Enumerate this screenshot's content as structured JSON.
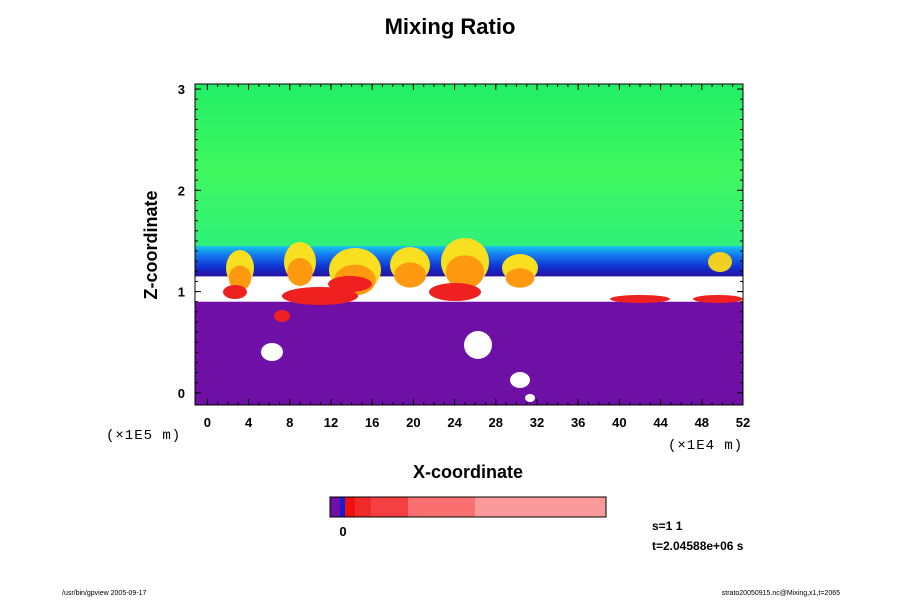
{
  "chart_data": {
    "type": "heatmap",
    "title": "Mixing Ratio",
    "xlabel": "X-coordinate",
    "ylabel": "Z-coordinate",
    "x_scale_label": "(×1E4 m)",
    "y_scale_label": "(×1E5 m)",
    "xlim": [
      -1.2,
      52
    ],
    "ylim": [
      -0.12,
      3.05
    ],
    "x_ticks": [
      0,
      4,
      8,
      12,
      16,
      20,
      24,
      28,
      32,
      36,
      40,
      44,
      48,
      52
    ],
    "y_ticks": [
      0,
      1,
      2,
      3
    ],
    "colorbar": {
      "tick_labels": [
        "0"
      ]
    },
    "layers": [
      {
        "name": "upper",
        "color": "#22ee66",
        "z_range": [
          1.45,
          3.05
        ]
      },
      {
        "name": "transition",
        "color": "#1460e6",
        "z_range": [
          1.15,
          1.45
        ]
      },
      {
        "name": "lower",
        "color": "#6e10a6",
        "z_range": [
          -0.12,
          0.9
        ]
      }
    ],
    "grid": false,
    "legend": "colorbar-bottom"
  },
  "info": {
    "step": "s=1 1",
    "time": "t=2.04588e+06 s"
  },
  "footer": {
    "left": "/usr/bin/gpview 2005-09-17",
    "right": "strato20050915.nc@Mixing,x1,t=2065"
  }
}
